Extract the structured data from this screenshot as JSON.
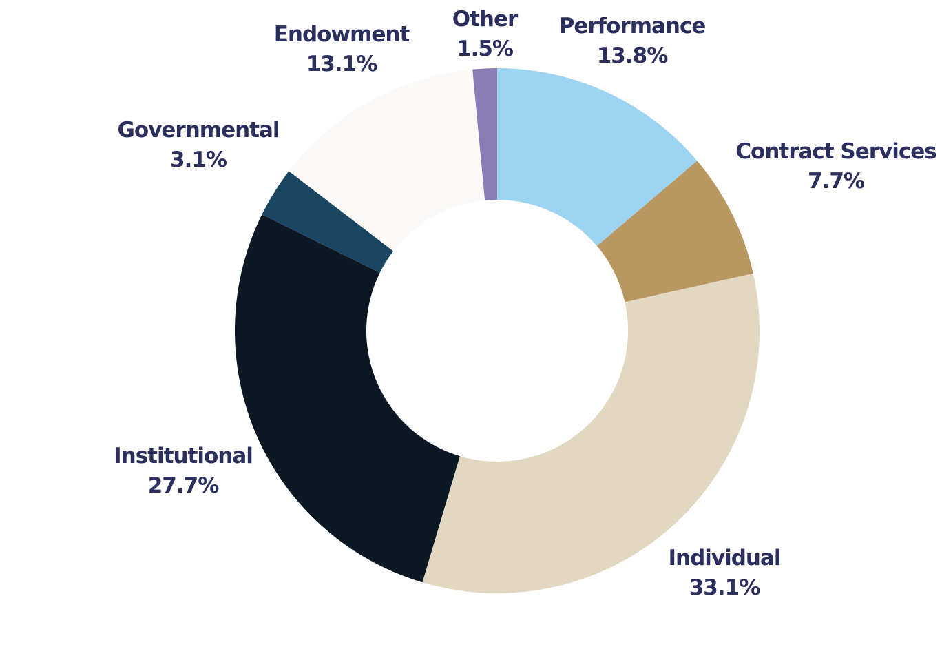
{
  "chart_data": {
    "type": "pie",
    "variant": "donut",
    "title": "",
    "start_angle_deg": 0,
    "direction": "clockwise",
    "slices": [
      {
        "key": "performance",
        "label": "Performance",
        "value": 13.8,
        "value_label": "13.8%",
        "color": "#9dd4f1"
      },
      {
        "key": "contract-services",
        "label": "Contract Services",
        "value": 7.7,
        "value_label": "7.7%",
        "color": "#b99761"
      },
      {
        "key": "individual",
        "label": "Individual",
        "value": 33.1,
        "value_label": "33.1%",
        "color": "#e2d8c2"
      },
      {
        "key": "institutional",
        "label": "Institutional",
        "value": 27.7,
        "value_label": "27.7%",
        "color": "#0c1925"
      },
      {
        "key": "governmental",
        "label": "Governmental",
        "value": 3.1,
        "value_label": "3.1%",
        "color": "#1b4661"
      },
      {
        "key": "endowment",
        "label": "Endowment",
        "value": 13.1,
        "value_label": "13.1%",
        "color": "#faf9f7"
      },
      {
        "key": "other",
        "label": "Other",
        "value": 1.5,
        "value_label": "1.5%",
        "color": "#8a7cb6"
      }
    ]
  },
  "colors": {
    "label_text": "#2b2f5e",
    "background": "#ffffff"
  }
}
